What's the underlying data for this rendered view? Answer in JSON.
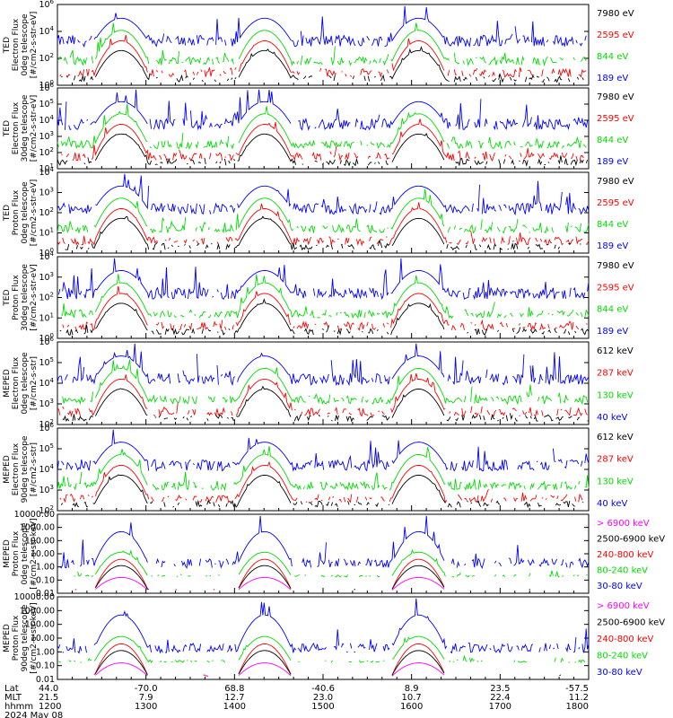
{
  "colors": {
    "black": "#000000",
    "red": "#ff0000",
    "green": "#00dd00",
    "blue": "#0000ff",
    "magenta": "#ff00ff"
  },
  "chart_data": [
    {
      "type": "line",
      "ylabel": [
        "TED",
        "Electron Flux",
        "0deg telescope",
        "[#/cm2-s-str-eV]"
      ],
      "yscale": "log",
      "yticks": [
        "10^0",
        "10^2",
        "10^4",
        "10^6"
      ],
      "legend": [
        {
          "label": "7980 eV",
          "color": "black"
        },
        {
          "label": "2595 eV",
          "color": "red"
        },
        {
          "label": "844 eV",
          "color": "green"
        },
        {
          "label": "189 eV",
          "color": "blue"
        }
      ]
    },
    {
      "type": "line",
      "ylabel": [
        "TED",
        "Electron Flux",
        "30deg telescope",
        "[#/cm2-s-str-eV]"
      ],
      "yscale": "log",
      "yticks": [
        "10^1",
        "10^2",
        "10^3",
        "10^4",
        "10^5",
        "10^6"
      ],
      "legend": [
        {
          "label": "7980 eV",
          "color": "black"
        },
        {
          "label": "2595 eV",
          "color": "red"
        },
        {
          "label": "844 eV",
          "color": "green"
        },
        {
          "label": "189 eV",
          "color": "blue"
        }
      ]
    },
    {
      "type": "line",
      "ylabel": [
        "TED",
        "Proton Flux",
        "0deg telescope",
        "[#/cm2-s-str-eV]"
      ],
      "yscale": "log",
      "yticks": [
        "10^0",
        "10^1",
        "10^2",
        "10^3",
        "10^4"
      ],
      "legend": [
        {
          "label": "7980 eV",
          "color": "black"
        },
        {
          "label": "2595 eV",
          "color": "red"
        },
        {
          "label": "844 eV",
          "color": "green"
        },
        {
          "label": "189 eV",
          "color": "blue"
        }
      ]
    },
    {
      "type": "line",
      "ylabel": [
        "TED",
        "Proton Flux",
        "30deg telescope",
        "[#/cm2-s-str-eV]"
      ],
      "yscale": "log",
      "yticks": [
        "10^0",
        "10^1",
        "10^2",
        "10^3",
        "10^4"
      ],
      "legend": [
        {
          "label": "7980 eV",
          "color": "black"
        },
        {
          "label": "2595 eV",
          "color": "red"
        },
        {
          "label": "844 eV",
          "color": "green"
        },
        {
          "label": "189 eV",
          "color": "blue"
        }
      ]
    },
    {
      "type": "line",
      "ylabel": [
        "MEPED",
        "Electron Flux",
        "0deg telescope",
        "[#/cm2-s-str]"
      ],
      "yscale": "log",
      "yticks": [
        "10^2",
        "10^3",
        "10^4",
        "10^5",
        "10^6"
      ],
      "legend": [
        {
          "label": "612 keV",
          "color": "black"
        },
        {
          "label": "287 keV",
          "color": "red"
        },
        {
          "label": "130 keV",
          "color": "green"
        },
        {
          "label": "40 keV",
          "color": "blue"
        }
      ]
    },
    {
      "type": "line",
      "ylabel": [
        "MEPED",
        "Electron Flux",
        "90deg telescope",
        "[#/cm2-s-str]"
      ],
      "yscale": "log",
      "yticks": [
        "10^2",
        "10^3",
        "10^4",
        "10^5",
        "10^6"
      ],
      "legend": [
        {
          "label": "612 keV",
          "color": "black"
        },
        {
          "label": "287 keV",
          "color": "red"
        },
        {
          "label": "130 keV",
          "color": "green"
        },
        {
          "label": "40 keV",
          "color": "blue"
        }
      ]
    },
    {
      "type": "line",
      "ylabel": [
        "MEPED",
        "Proton Flux",
        "0deg telescope",
        "[#/cm2-s-str-keV]"
      ],
      "yscale": "log",
      "yticks": [
        "10000.00",
        "1000.00",
        "100.00",
        "10.00",
        "1.00",
        "0.10",
        "0.01"
      ],
      "legend": [
        {
          "label": "> 6900 keV",
          "color": "magenta"
        },
        {
          "label": "2500-6900 keV",
          "color": "black"
        },
        {
          "label": "240-800 keV",
          "color": "red"
        },
        {
          "label": "80-240 keV",
          "color": "green"
        },
        {
          "label": "30-80 keV",
          "color": "blue"
        }
      ]
    },
    {
      "type": "line",
      "ylabel": [
        "MEPED",
        "Proton Flux",
        "90deg telescope",
        "[#/cm2-s-str-keV]"
      ],
      "yscale": "log",
      "yticks": [
        "10000.00",
        "1000.00",
        "100.00",
        "10.00",
        "1.00",
        "0.10",
        "0.01"
      ],
      "legend": [
        {
          "label": "> 6900 keV",
          "color": "magenta"
        },
        {
          "label": "2500-6900 keV",
          "color": "black"
        },
        {
          "label": "240-800 keV",
          "color": "red"
        },
        {
          "label": "80-240 keV",
          "color": "green"
        },
        {
          "label": "30-80 keV",
          "color": "blue"
        }
      ]
    }
  ],
  "footer": {
    "row_labels": [
      "Lat",
      "MLT",
      "hhmm",
      "2024 May 08"
    ],
    "columns": [
      {
        "lat": "44.0",
        "mlt": "21.5",
        "hhmm": "1200"
      },
      {
        "lat": "-70.0",
        "mlt": "7.9",
        "hhmm": "1300"
      },
      {
        "lat": "68.8",
        "mlt": "12.7",
        "hhmm": "1400"
      },
      {
        "lat": "-40.6",
        "mlt": "23.0",
        "hhmm": "1500"
      },
      {
        "lat": "8.9",
        "mlt": "10.7",
        "hhmm": "1600"
      },
      {
        "lat": "23.5",
        "mlt": "22.4",
        "hhmm": "1700"
      },
      {
        "lat": "-57.5",
        "mlt": "11.2",
        "hhmm": "1800"
      }
    ]
  }
}
